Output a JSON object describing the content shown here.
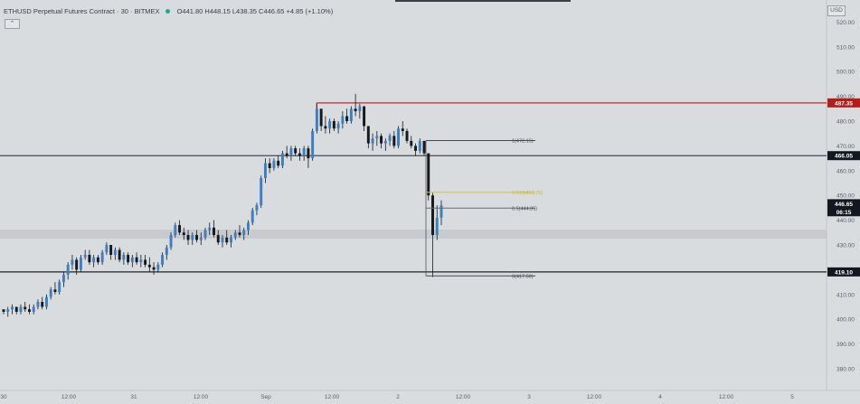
{
  "header": {
    "symbol": "ETHUSD Perpetual Futures Contract · 30 · BITMEX",
    "ohlc": "O441.80 H448.15 L438.35 C446.65 +4.85 (+1.10%)"
  },
  "collapse_label": "⌃",
  "currency_button": "USD",
  "chart_data": {
    "type": "candlestick",
    "ylim": [
      375,
      527
    ],
    "y_ticks": [
      "380.00",
      "390.00",
      "400.00",
      "410.00",
      "420.00",
      "430.00",
      "440.00",
      "450.00",
      "460.00",
      "470.00",
      "480.00",
      "490.00",
      "500.00",
      "510.00",
      "520.00"
    ],
    "x_ticks": [
      "30",
      "12:00",
      "31",
      "12:00",
      "Sep",
      "12:00",
      "2",
      "12:00",
      "3",
      "12:00",
      "4",
      "12:00",
      "5"
    ],
    "price_labels": [
      {
        "text": "487.35",
        "value": 487.35,
        "color": "#b71c1c"
      },
      {
        "text": "466.05",
        "value": 466.05,
        "color": "#131722"
      },
      {
        "text": "446.65",
        "value": 446.65,
        "color": "#131722"
      },
      {
        "text": "06:15",
        "value": 443.4,
        "color": "#131722"
      },
      {
        "text": "419.10",
        "value": 419.1,
        "color": "#131722"
      }
    ],
    "horizontal_lines": [
      {
        "value": 487.35,
        "color": "#c62828",
        "from": 0.383
      },
      {
        "value": 466.05,
        "color": "#444a52",
        "from": 0.0
      },
      {
        "value": 419.1,
        "color": "#202329",
        "from": 0.0
      }
    ],
    "current_price": 446.65,
    "fib": [
      {
        "label": "1(472.15)",
        "value": 472.15,
        "color": "#444a52"
      },
      {
        "label": "0.618(451.25)",
        "value": 451.25,
        "color": "#d4c14a"
      },
      {
        "label": "0.5(444.85)",
        "value": 444.85,
        "color": "#666b72"
      },
      {
        "label": "0(417.50)",
        "value": 417.5,
        "color": "#444a52"
      }
    ],
    "candles": [
      [
        404,
        404,
        402,
        403
      ],
      [
        403,
        405,
        401,
        404
      ],
      [
        404,
        406,
        402,
        405
      ],
      [
        405,
        405,
        402,
        403
      ],
      [
        403,
        406,
        402,
        405
      ],
      [
        405,
        407,
        403,
        404
      ],
      [
        404,
        406,
        402,
        403
      ],
      [
        403,
        406,
        402,
        405
      ],
      [
        405,
        408,
        404,
        407
      ],
      [
        407,
        409,
        404,
        405
      ],
      [
        405,
        410,
        404,
        409
      ],
      [
        409,
        413,
        408,
        412
      ],
      [
        412,
        415,
        410,
        411
      ],
      [
        411,
        416,
        410,
        415
      ],
      [
        415,
        419,
        413,
        418
      ],
      [
        418,
        423,
        416,
        422
      ],
      [
        422,
        426,
        420,
        424
      ],
      [
        424,
        425,
        418,
        420
      ],
      [
        420,
        426,
        419,
        425
      ],
      [
        425,
        428,
        424,
        426
      ],
      [
        426,
        428,
        422,
        423
      ],
      [
        423,
        426,
        421,
        425
      ],
      [
        425,
        426,
        422,
        423
      ],
      [
        423,
        428,
        422,
        427
      ],
      [
        427,
        431,
        426,
        430
      ],
      [
        430,
        429,
        424,
        426
      ],
      [
        426,
        429,
        424,
        428
      ],
      [
        428,
        429,
        423,
        424
      ],
      [
        424,
        427,
        422,
        426
      ],
      [
        426,
        427,
        422,
        423
      ],
      [
        423,
        426,
        421,
        425
      ],
      [
        425,
        427,
        422,
        423
      ],
      [
        423,
        426,
        421,
        424
      ],
      [
        424,
        426,
        421,
        422
      ],
      [
        422,
        425,
        419,
        421
      ],
      [
        421,
        423,
        418,
        420
      ],
      [
        420,
        423,
        419,
        422
      ],
      [
        422,
        427,
        421,
        426
      ],
      [
        426,
        430,
        424,
        429
      ],
      [
        429,
        435,
        428,
        434
      ],
      [
        434,
        439,
        433,
        438
      ],
      [
        438,
        440,
        434,
        435
      ],
      [
        435,
        437,
        432,
        434
      ],
      [
        434,
        436,
        430,
        432
      ],
      [
        432,
        435,
        430,
        434
      ],
      [
        434,
        436,
        431,
        432
      ],
      [
        432,
        435,
        430,
        433
      ],
      [
        433,
        437,
        432,
        436
      ],
      [
        436,
        439,
        434,
        437
      ],
      [
        437,
        440,
        433,
        434
      ],
      [
        434,
        436,
        430,
        431
      ],
      [
        431,
        434,
        429,
        433
      ],
      [
        433,
        436,
        430,
        431
      ],
      [
        431,
        434,
        429,
        433
      ],
      [
        433,
        436,
        432,
        435
      ],
      [
        435,
        438,
        433,
        434
      ],
      [
        434,
        437,
        432,
        436
      ],
      [
        436,
        440,
        434,
        439
      ],
      [
        439,
        445,
        438,
        444
      ],
      [
        444,
        447,
        442,
        446
      ],
      [
        446,
        458,
        445,
        457
      ],
      [
        457,
        465,
        455,
        463
      ],
      [
        463,
        465,
        459,
        461
      ],
      [
        461,
        465,
        460,
        464
      ],
      [
        464,
        466,
        461,
        462
      ],
      [
        462,
        468,
        461,
        467
      ],
      [
        467,
        470,
        465,
        466
      ],
      [
        466,
        470,
        464,
        469
      ],
      [
        469,
        470,
        466,
        467
      ],
      [
        467,
        469,
        464,
        466
      ],
      [
        466,
        470,
        464,
        469
      ],
      [
        469,
        470,
        461,
        465
      ],
      [
        465,
        477,
        464,
        476
      ],
      [
        476,
        487,
        475,
        485
      ],
      [
        485,
        484,
        476,
        478
      ],
      [
        478,
        482,
        475,
        477
      ],
      [
        477,
        481,
        475,
        480
      ],
      [
        480,
        481,
        476,
        477
      ],
      [
        477,
        480,
        475,
        479
      ],
      [
        479,
        484,
        477,
        482
      ],
      [
        482,
        485,
        479,
        480
      ],
      [
        480,
        486,
        479,
        485
      ],
      [
        485,
        491,
        482,
        484
      ],
      [
        484,
        487,
        481,
        486
      ],
      [
        486,
        485,
        476,
        478
      ],
      [
        478,
        478,
        469,
        471
      ],
      [
        471,
        475,
        468,
        473
      ],
      [
        473,
        476,
        470,
        474
      ],
      [
        474,
        475,
        469,
        471
      ],
      [
        471,
        473,
        468,
        472
      ],
      [
        472,
        475,
        470,
        474
      ],
      [
        474,
        476,
        469,
        470
      ],
      [
        470,
        478,
        469,
        477
      ],
      [
        477,
        480,
        474,
        476
      ],
      [
        476,
        477,
        471,
        472
      ],
      [
        472,
        474,
        469,
        470
      ],
      [
        470,
        471,
        466,
        468
      ],
      [
        468,
        473,
        467,
        472
      ],
      [
        472,
        472,
        466,
        467
      ],
      [
        467,
        467,
        448,
        450
      ],
      [
        450,
        451,
        417,
        434
      ],
      [
        434,
        446,
        432,
        441
      ],
      [
        441,
        448,
        438,
        446
      ]
    ],
    "notes": "OHLC values estimated from the chart; last candle is the live candle (C446.65)."
  }
}
